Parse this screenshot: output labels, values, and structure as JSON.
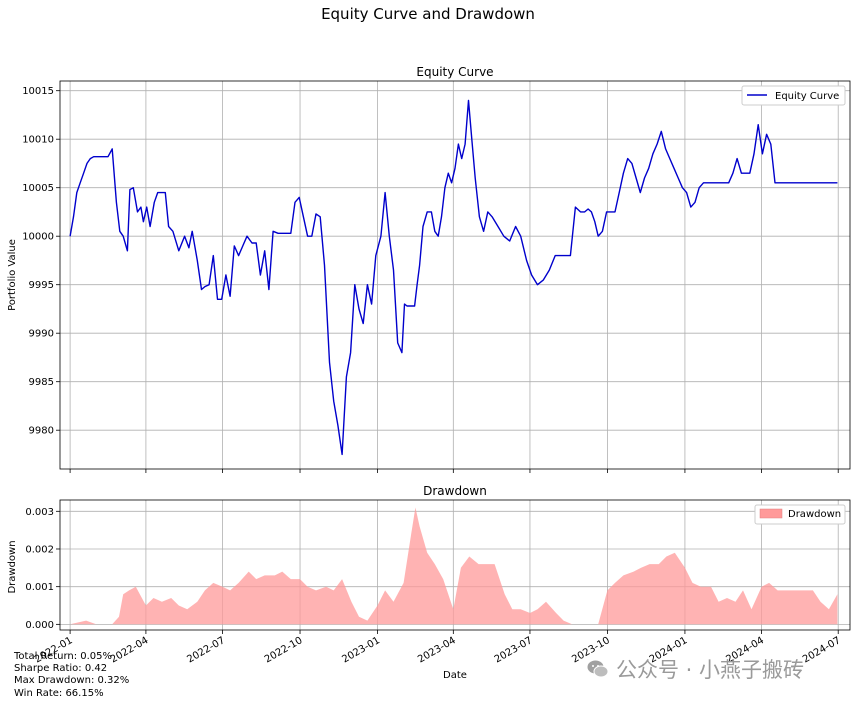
{
  "figure": {
    "suptitle": "Equity Curve and Drawdown",
    "date_axis_label": "Date",
    "date_ticks": [
      "2022-01",
      "2022-04",
      "2022-07",
      "2022-10",
      "2023-01",
      "2023-04",
      "2023-07",
      "2023-10",
      "2024-01",
      "2024-04",
      "2024-07"
    ]
  },
  "stats": {
    "total_return": "Total Return: 0.05%",
    "sharpe": "Sharpe Ratio: 0.42",
    "max_drawdown": "Max Drawdown: 0.32%",
    "win_rate": "Win Rate: 66.15%"
  },
  "watermark": {
    "text": "公众号 · 小燕子搬砖",
    "icon": "wechat-icon"
  },
  "chart_data": [
    {
      "type": "line",
      "title": "Equity Curve",
      "ylabel": "Portfolio Value",
      "xlabel": "",
      "legend": "top-right",
      "grid": true,
      "ylim": [
        9976,
        10016
      ],
      "yticks": [
        9980,
        9985,
        9990,
        9995,
        10000,
        10005,
        10010,
        10015
      ],
      "x_range": [
        "2021-12-20",
        "2024-07-15"
      ],
      "series": [
        {
          "name": "Equity Curve",
          "color": "#0000cc",
          "x": [
            "2022-01-01",
            "2022-01-05",
            "2022-01-09",
            "2022-01-13",
            "2022-01-17",
            "2022-01-21",
            "2022-01-25",
            "2022-01-29",
            "2022-02-03",
            "2022-02-10",
            "2022-02-15",
            "2022-02-20",
            "2022-02-25",
            "2022-03-01",
            "2022-03-05",
            "2022-03-10",
            "2022-03-13",
            "2022-03-17",
            "2022-03-22",
            "2022-03-26",
            "2022-03-29",
            "2022-04-02",
            "2022-04-06",
            "2022-04-11",
            "2022-04-15",
            "2022-04-19",
            "2022-04-24",
            "2022-04-28",
            "2022-05-03",
            "2022-05-10",
            "2022-05-17",
            "2022-05-22",
            "2022-05-26",
            "2022-06-01",
            "2022-06-06",
            "2022-06-10",
            "2022-06-15",
            "2022-06-20",
            "2022-06-25",
            "2022-06-30",
            "2022-07-05",
            "2022-07-10",
            "2022-07-15",
            "2022-07-20",
            "2022-07-25",
            "2022-07-30",
            "2022-08-05",
            "2022-08-10",
            "2022-08-15",
            "2022-08-20",
            "2022-08-25",
            "2022-08-30",
            "2022-09-05",
            "2022-09-10",
            "2022-09-15",
            "2022-09-20",
            "2022-09-25",
            "2022-09-30",
            "2022-10-05",
            "2022-10-10",
            "2022-10-15",
            "2022-10-20",
            "2022-10-25",
            "2022-10-30",
            "2022-11-05",
            "2022-11-10",
            "2022-11-15",
            "2022-11-20",
            "2022-11-25",
            "2022-11-30",
            "2022-12-05",
            "2022-12-10",
            "2022-12-15",
            "2022-12-20",
            "2022-12-25",
            "2022-12-30",
            "2023-01-05",
            "2023-01-10",
            "2023-01-15",
            "2023-01-20",
            "2023-01-25",
            "2023-01-30",
            "2023-02-02",
            "2023-02-05",
            "2023-02-08",
            "2023-02-11",
            "2023-02-14",
            "2023-02-17",
            "2023-02-20",
            "2023-02-24",
            "2023-03-01",
            "2023-03-06",
            "2023-03-10",
            "2023-03-14",
            "2023-03-18",
            "2023-03-22",
            "2023-03-26",
            "2023-03-30",
            "2023-04-03",
            "2023-04-07",
            "2023-04-11",
            "2023-04-15",
            "2023-04-19",
            "2023-04-23",
            "2023-04-27",
            "2023-05-02",
            "2023-05-07",
            "2023-05-12",
            "2023-05-17",
            "2023-05-24",
            "2023-05-31",
            "2023-06-07",
            "2023-06-14",
            "2023-06-20",
            "2023-06-27",
            "2023-07-03",
            "2023-07-10",
            "2023-07-17",
            "2023-07-24",
            "2023-07-31",
            "2023-08-06",
            "2023-08-12",
            "2023-08-18",
            "2023-08-24",
            "2023-08-30",
            "2023-09-04",
            "2023-09-08",
            "2023-09-12",
            "2023-09-16",
            "2023-09-20",
            "2023-09-25",
            "2023-09-30",
            "2023-10-05",
            "2023-10-10",
            "2023-10-15",
            "2023-10-20",
            "2023-10-25",
            "2023-10-30",
            "2023-11-04",
            "2023-11-09",
            "2023-11-14",
            "2023-11-19",
            "2023-11-24",
            "2023-11-29",
            "2023-12-04",
            "2023-12-09",
            "2023-12-14",
            "2023-12-19",
            "2023-12-24",
            "2023-12-29",
            "2024-01-03",
            "2024-01-08",
            "2024-01-13",
            "2024-01-18",
            "2024-01-23",
            "2024-01-28",
            "2024-02-02",
            "2024-02-07",
            "2024-02-12",
            "2024-02-17",
            "2024-02-22",
            "2024-02-27",
            "2024-03-03",
            "2024-03-08",
            "2024-03-13",
            "2024-03-18",
            "2024-03-23",
            "2024-03-28",
            "2024-04-02",
            "2024-04-07",
            "2024-04-12",
            "2024-04-17",
            "2024-04-22",
            "2024-04-27",
            "2024-05-02",
            "2024-05-08",
            "2024-05-14",
            "2024-05-20",
            "2024-05-26",
            "2024-06-01",
            "2024-06-06",
            "2024-06-11",
            "2024-06-16",
            "2024-06-21",
            "2024-06-26",
            "2024-06-30"
          ],
          "y": [
            10000.0,
            10002.0,
            10004.5,
            10005.5,
            10006.5,
            10007.5,
            10008.0,
            10008.2,
            10008.2,
            10008.2,
            10008.2,
            10009.0,
            10003.5,
            10000.5,
            10000.0,
            9998.5,
            10004.8,
            10005.0,
            10002.5,
            10003.0,
            10001.5,
            10003.0,
            10001.0,
            10003.5,
            10004.5,
            10004.5,
            10004.5,
            10001.0,
            10000.5,
            9998.5,
            10000.0,
            9998.8,
            10000.5,
            9997.5,
            9994.5,
            9994.8,
            9995.0,
            9998.0,
            9993.5,
            9993.5,
            9996.0,
            9993.8,
            9999.0,
            9998.0,
            9999.0,
            10000.0,
            9999.3,
            9999.3,
            9996.0,
            9998.5,
            9994.5,
            10000.5,
            10000.3,
            10000.3,
            10000.3,
            10000.3,
            10003.5,
            10004.0,
            10002.0,
            10000.0,
            10000.0,
            10002.3,
            10002.0,
            9997.0,
            9987.0,
            9983.0,
            9980.5,
            9977.5,
            9985.5,
            9988.0,
            9995.0,
            9992.5,
            9991.0,
            9995.0,
            9993.0,
            9998.0,
            10000.0,
            10004.5,
            10000.0,
            9996.5,
            9989.0,
            9988.0,
            9993.0,
            9992.8,
            9992.8,
            9992.8,
            9992.8,
            9995.0,
            9997.0,
            10001.0,
            10002.5,
            10002.5,
            10000.5,
            10000.0,
            10002.0,
            10005.0,
            10006.5,
            10005.5,
            10007.0,
            10009.5,
            10008.0,
            10009.5,
            10014.0,
            10010.0,
            10006.0,
            10002.0,
            10000.5,
            10002.5,
            10002.0,
            10001.0,
            10000.0,
            9999.5,
            10001.0,
            10000.0,
            9997.5,
            9996.0,
            9995.0,
            9995.5,
            9996.5,
            9998.0,
            9998.0,
            9998.0,
            9998.0,
            10003.0,
            10002.5,
            10002.5,
            10002.8,
            10002.5,
            10001.5,
            10000.0,
            10000.5,
            10002.5,
            10002.5,
            10002.5,
            10004.5,
            10006.5,
            10008.0,
            10007.5,
            10006.0,
            10004.5,
            10006.0,
            10007.0,
            10008.5,
            10009.5,
            10010.8,
            10009.0,
            10008.0,
            10007.0,
            10006.0,
            10005.0,
            10004.5,
            10003.0,
            10003.5,
            10005.0,
            10005.5,
            10005.5,
            10005.5,
            10005.5,
            10005.5,
            10005.5,
            10005.5,
            10006.5,
            10008.0,
            10006.5,
            10006.5,
            10006.5,
            10008.5,
            10011.5,
            10008.5,
            10010.5,
            10009.5,
            10005.5,
            10005.5,
            10005.5,
            10005.5,
            10005.5,
            10005.5,
            10005.5,
            10005.5,
            10005.5,
            10005.5,
            10005.5,
            10005.5,
            10005.5,
            10005.5,
            10005.5
          ]
        }
      ]
    },
    {
      "type": "area",
      "title": "Drawdown",
      "ylabel": "Drawdown",
      "xlabel": "Date",
      "legend": "top-right",
      "grid": true,
      "ylim": [
        -0.00015,
        0.0033
      ],
      "yticks": [
        0.0,
        0.001,
        0.002,
        0.003
      ],
      "ytick_labels": [
        "0.000",
        "0.001",
        "0.002",
        "0.003"
      ],
      "x_range": [
        "2021-12-20",
        "2024-07-15"
      ],
      "series": [
        {
          "name": "Drawdown",
          "color": "#ff9999",
          "x": [
            "2022-01-01",
            "2022-01-20",
            "2022-02-01",
            "2022-02-10",
            "2022-02-20",
            "2022-02-28",
            "2022-03-05",
            "2022-03-12",
            "2022-03-20",
            "2022-04-01",
            "2022-04-10",
            "2022-04-20",
            "2022-05-01",
            "2022-05-10",
            "2022-05-20",
            "2022-06-01",
            "2022-06-10",
            "2022-06-20",
            "2022-07-01",
            "2022-07-10",
            "2022-07-20",
            "2022-08-01",
            "2022-08-10",
            "2022-08-20",
            "2022-09-01",
            "2022-09-10",
            "2022-09-20",
            "2022-10-01",
            "2022-10-10",
            "2022-10-20",
            "2022-11-01",
            "2022-11-10",
            "2022-11-20",
            "2022-12-01",
            "2022-12-10",
            "2022-12-20",
            "2023-01-01",
            "2023-01-10",
            "2023-01-20",
            "2023-02-01",
            "2023-02-10",
            "2023-02-15",
            "2023-02-20",
            "2023-03-01",
            "2023-03-10",
            "2023-03-20",
            "2023-04-01",
            "2023-04-10",
            "2023-04-20",
            "2023-05-01",
            "2023-05-10",
            "2023-05-20",
            "2023-06-01",
            "2023-06-10",
            "2023-06-20",
            "2023-07-01",
            "2023-07-10",
            "2023-07-20",
            "2023-08-01",
            "2023-08-10",
            "2023-08-20",
            "2023-09-01",
            "2023-09-10",
            "2023-09-20",
            "2023-10-01",
            "2023-10-10",
            "2023-10-20",
            "2023-11-01",
            "2023-11-10",
            "2023-11-20",
            "2023-12-01",
            "2023-12-10",
            "2023-12-20",
            "2024-01-01",
            "2024-01-10",
            "2024-01-20",
            "2024-02-01",
            "2024-02-10",
            "2024-02-20",
            "2024-03-01",
            "2024-03-10",
            "2024-03-20",
            "2024-04-01",
            "2024-04-10",
            "2024-04-20",
            "2024-05-01",
            "2024-05-10",
            "2024-05-20",
            "2024-06-01",
            "2024-06-10",
            "2024-06-20",
            "2024-06-30"
          ],
          "y": [
            0.0,
            0.0001,
            0.0,
            0.0,
            0.0,
            0.0002,
            0.0008,
            0.0009,
            0.001,
            0.0005,
            0.0007,
            0.0006,
            0.0007,
            0.0005,
            0.0004,
            0.0006,
            0.0009,
            0.0011,
            0.001,
            0.0009,
            0.0011,
            0.0014,
            0.0012,
            0.0013,
            0.0013,
            0.0014,
            0.0012,
            0.0012,
            0.001,
            0.0009,
            0.001,
            0.0009,
            0.0012,
            0.0006,
            0.0002,
            0.0001,
            0.0005,
            0.0009,
            0.0006,
            0.0011,
            0.0024,
            0.0031,
            0.0026,
            0.0019,
            0.0016,
            0.0012,
            0.0004,
            0.0015,
            0.0018,
            0.0016,
            0.0016,
            0.0016,
            0.0008,
            0.0004,
            0.0004,
            0.0003,
            0.0004,
            0.0006,
            0.0003,
            0.0001,
            0.0,
            0.0,
            0.0,
            0.0,
            0.0009,
            0.0011,
            0.0013,
            0.0014,
            0.0015,
            0.0016,
            0.0016,
            0.0018,
            0.0019,
            0.0015,
            0.0011,
            0.001,
            0.001,
            0.0006,
            0.0007,
            0.0006,
            0.0009,
            0.0004,
            0.001,
            0.0011,
            0.0009,
            0.0009,
            0.0009,
            0.0009,
            0.0009,
            0.0006,
            0.0004,
            0.0008
          ]
        }
      ]
    }
  ]
}
